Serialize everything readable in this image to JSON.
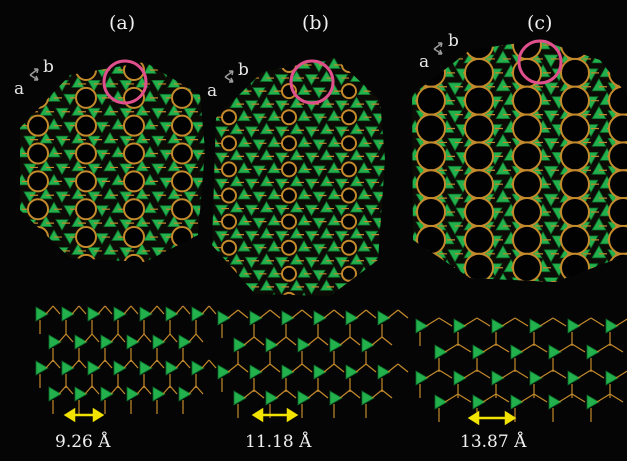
{
  "panels": [
    {
      "label": "(a)",
      "axis_a": "a",
      "axis_b": "b",
      "distance": "9.26 Å"
    },
    {
      "label": "(b)",
      "axis_a": "a",
      "axis_b": "b",
      "distance": "11.18 Å"
    },
    {
      "label": "(c)",
      "axis_a": "a",
      "axis_b": "b",
      "distance": "13.87 Å"
    }
  ],
  "colors": {
    "background": "#050505",
    "polyhedra": "#22b14c",
    "polyhedra_dark": "#0d6a2a",
    "linker": "#c48a2c",
    "highlight_circle": "#e0508c",
    "distance_arrow": "#f2e200",
    "axis_arrow": "#9a9a9a"
  },
  "icons": [
    "axis-arrows-icon",
    "highlight-circle-icon",
    "double-headed-arrow-icon"
  ]
}
